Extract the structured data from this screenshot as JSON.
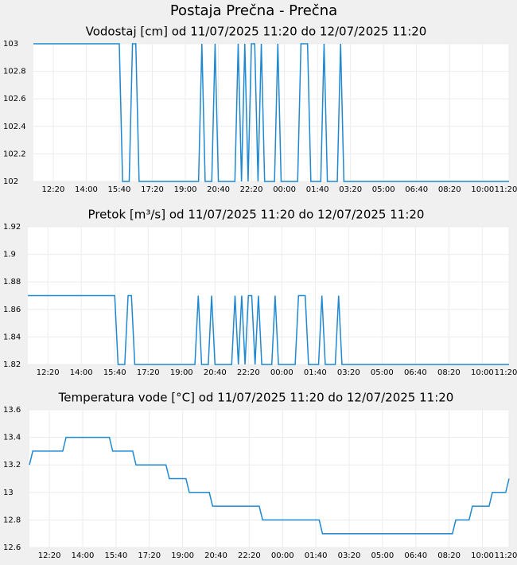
{
  "title": "Postaja Prečna - Prečna",
  "chart_data": [
    {
      "type": "line",
      "title": "Vodostaj [cm] od 11/07/2025 11:20 do 12/07/2025 11:20",
      "color": "#1f88d0",
      "grid": true,
      "x": [
        0,
        260,
        270,
        290,
        300,
        310,
        320,
        500,
        510,
        520,
        540,
        550,
        560,
        610,
        620,
        630,
        640,
        650,
        660,
        670,
        680,
        690,
        700,
        730,
        740,
        750,
        800,
        810,
        830,
        840,
        870,
        880,
        890,
        920,
        930,
        940,
        1440
      ],
      "values": [
        103,
        103,
        102,
        102,
        103,
        103,
        102,
        102,
        103,
        102,
        102,
        103,
        102,
        102,
        103,
        102,
        103,
        102,
        103,
        103,
        102,
        103,
        102,
        102,
        103,
        102,
        102,
        103,
        103,
        102,
        102,
        103,
        102,
        102,
        103,
        102,
        102
      ],
      "xlim": [
        0,
        1440
      ],
      "xticks": [
        {
          "value": 60,
          "label": "12:20"
        },
        {
          "value": 160,
          "label": "14:00"
        },
        {
          "value": 260,
          "label": "15:40"
        },
        {
          "value": 360,
          "label": "17:20"
        },
        {
          "value": 460,
          "label": "19:00"
        },
        {
          "value": 560,
          "label": "20:40"
        },
        {
          "value": 660,
          "label": "22:20"
        },
        {
          "value": 760,
          "label": "00:00"
        },
        {
          "value": 860,
          "label": "01:40"
        },
        {
          "value": 960,
          "label": "03:20"
        },
        {
          "value": 1060,
          "label": "05:00"
        },
        {
          "value": 1160,
          "label": "06:40"
        },
        {
          "value": 1260,
          "label": "08:20"
        },
        {
          "value": 1360,
          "label": "10:00"
        },
        {
          "value": 1440,
          "label": "11:20"
        }
      ],
      "ylim": [
        102,
        103
      ],
      "yticks": [
        102,
        102.2,
        102.4,
        102.6,
        102.8,
        103
      ]
    },
    {
      "type": "line",
      "title": "Pretok [m³/s] od 11/07/2025 11:20 do 12/07/2025 11:20",
      "color": "#1f88d0",
      "grid": true,
      "x": [
        0,
        260,
        270,
        290,
        300,
        310,
        320,
        500,
        510,
        520,
        540,
        550,
        560,
        610,
        620,
        630,
        640,
        650,
        660,
        670,
        680,
        690,
        700,
        730,
        740,
        750,
        800,
        810,
        830,
        840,
        870,
        880,
        890,
        920,
        930,
        940,
        1440
      ],
      "values": [
        1.87,
        1.87,
        1.82,
        1.82,
        1.87,
        1.87,
        1.82,
        1.82,
        1.87,
        1.82,
        1.82,
        1.87,
        1.82,
        1.82,
        1.87,
        1.82,
        1.87,
        1.82,
        1.87,
        1.87,
        1.82,
        1.87,
        1.82,
        1.82,
        1.87,
        1.82,
        1.82,
        1.87,
        1.87,
        1.82,
        1.82,
        1.87,
        1.82,
        1.82,
        1.87,
        1.82,
        1.82
      ],
      "xlim": [
        0,
        1440
      ],
      "xticks": [
        {
          "value": 60,
          "label": "12:20"
        },
        {
          "value": 160,
          "label": "14:00"
        },
        {
          "value": 260,
          "label": "15:40"
        },
        {
          "value": 360,
          "label": "17:20"
        },
        {
          "value": 460,
          "label": "19:00"
        },
        {
          "value": 560,
          "label": "20:40"
        },
        {
          "value": 660,
          "label": "22:20"
        },
        {
          "value": 760,
          "label": "00:00"
        },
        {
          "value": 860,
          "label": "01:40"
        },
        {
          "value": 960,
          "label": "03:20"
        },
        {
          "value": 1060,
          "label": "05:00"
        },
        {
          "value": 1160,
          "label": "06:40"
        },
        {
          "value": 1260,
          "label": "08:20"
        },
        {
          "value": 1360,
          "label": "10:00"
        },
        {
          "value": 1440,
          "label": "11:20"
        }
      ],
      "ylim": [
        1.82,
        1.92
      ],
      "yticks": [
        1.82,
        1.84,
        1.86,
        1.88,
        1.9,
        1.92
      ]
    },
    {
      "type": "line",
      "title": "Temperatura vode [°C] od 11/07/2025 11:20 do 12/07/2025 11:20",
      "color": "#1f88d0",
      "grid": true,
      "x": [
        0,
        10,
        100,
        110,
        240,
        250,
        310,
        320,
        410,
        420,
        470,
        480,
        540,
        550,
        690,
        700,
        870,
        880,
        1270,
        1280,
        1320,
        1330,
        1380,
        1390,
        1430,
        1440
      ],
      "values": [
        13.2,
        13.3,
        13.3,
        13.4,
        13.4,
        13.3,
        13.3,
        13.2,
        13.2,
        13.1,
        13.1,
        13,
        13,
        12.9,
        12.9,
        12.8,
        12.8,
        12.7,
        12.7,
        12.8,
        12.8,
        12.9,
        12.9,
        13,
        13,
        13.1
      ],
      "xlim": [
        0,
        1440
      ],
      "xticks": [
        {
          "value": 60,
          "label": "12:20"
        },
        {
          "value": 160,
          "label": "14:00"
        },
        {
          "value": 260,
          "label": "15:40"
        },
        {
          "value": 360,
          "label": "17:20"
        },
        {
          "value": 460,
          "label": "19:00"
        },
        {
          "value": 560,
          "label": "20:40"
        },
        {
          "value": 660,
          "label": "22:20"
        },
        {
          "value": 760,
          "label": "00:00"
        },
        {
          "value": 860,
          "label": "01:40"
        },
        {
          "value": 960,
          "label": "03:20"
        },
        {
          "value": 1060,
          "label": "05:00"
        },
        {
          "value": 1160,
          "label": "06:40"
        },
        {
          "value": 1260,
          "label": "08:20"
        },
        {
          "value": 1360,
          "label": "10:00"
        },
        {
          "value": 1440,
          "label": "11:20"
        }
      ],
      "ylim": [
        12.6,
        13.6
      ],
      "yticks": [
        12.6,
        12.8,
        13,
        13.2,
        13.4,
        13.6
      ]
    }
  ]
}
